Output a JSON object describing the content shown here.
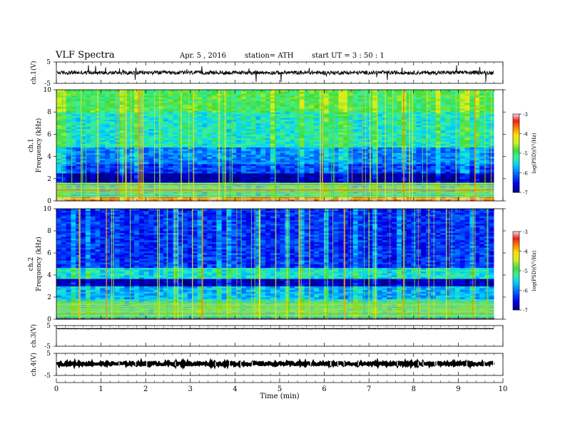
{
  "header": {
    "title": "VLF  Spectra",
    "date": "Apr. 5  , 2016",
    "station": "station= ATH",
    "start": "start  UT =   3  : 50 : 1"
  },
  "chart_data": [
    {
      "type": "line",
      "panel": "ch1-waveform",
      "ylabel": "ch.1(V)",
      "ylim": [
        -5,
        5
      ],
      "yticks": [
        "5",
        "-5"
      ],
      "xlim": [
        0,
        10
      ],
      "series": [
        {
          "baseline": 0,
          "noise_amplitude": 0.9,
          "x_end": 9.8
        }
      ]
    },
    {
      "type": "heatmap",
      "panel": "ch1-spectrogram",
      "ylabel": "ch.1\nFrequency  (kHz)",
      "ylim": [
        0,
        10
      ],
      "yticks": [
        "0",
        "2",
        "4",
        "6",
        "8",
        "10"
      ],
      "xlim": [
        0,
        10
      ],
      "x_end": 9.8,
      "colorbar": {
        "label": "log(PSD)(V²/Hz)",
        "range": [
          -7,
          -3
        ],
        "ticks": [
          "-3",
          "-4",
          "-5",
          "-6",
          "-7"
        ]
      },
      "band_profile": [
        {
          "f": [
            0.0,
            0.3
          ],
          "level": -3.3
        },
        {
          "f": [
            0.3,
            1.7
          ],
          "level": -5.4
        },
        {
          "f": [
            1.7,
            2.5
          ],
          "level": -6.9
        },
        {
          "f": [
            2.5,
            3.3
          ],
          "level": -6.2
        },
        {
          "f": [
            3.3,
            4.8
          ],
          "level": -5.9
        },
        {
          "f": [
            4.8,
            8.0
          ],
          "level": -5.3
        },
        {
          "f": [
            8.0,
            10.0
          ],
          "level": -4.9
        }
      ]
    },
    {
      "type": "heatmap",
      "panel": "ch2-spectrogram",
      "ylabel": "ch.2\nFrequency  (kHz)",
      "ylim": [
        0,
        10
      ],
      "yticks": [
        "0",
        "2",
        "4",
        "6",
        "8",
        "10"
      ],
      "xlim": [
        0,
        10
      ],
      "x_end": 9.8,
      "colorbar": {
        "label": "log(PSD)(V²/Hz)",
        "range": [
          -7,
          -3
        ],
        "ticks": [
          "-3",
          "-4",
          "-5",
          "-6",
          "-7"
        ]
      },
      "band_profile": [
        {
          "f": [
            0.0,
            0.2
          ],
          "level": -6.9
        },
        {
          "f": [
            0.2,
            1.8
          ],
          "level": -5.3
        },
        {
          "f": [
            1.8,
            3.0
          ],
          "level": -5.7
        },
        {
          "f": [
            3.0,
            3.7
          ],
          "level": -6.8
        },
        {
          "f": [
            3.7,
            4.7
          ],
          "level": -5.4
        },
        {
          "f": [
            4.7,
            10.0
          ],
          "level": -6.3
        }
      ]
    },
    {
      "type": "line",
      "panel": "ch3-waveform",
      "ylabel": "ch.3(V)",
      "ylim": [
        -5,
        5
      ],
      "yticks": [
        "5",
        "-5"
      ],
      "xlim": [
        0,
        10
      ],
      "series": [
        {
          "baseline": 3.5,
          "noise_amplitude": 0.1,
          "x_end": 9.8
        }
      ]
    },
    {
      "type": "line",
      "panel": "ch4-waveform",
      "ylabel": "ch.4(V)",
      "ylim": [
        -5,
        5
      ],
      "yticks": [
        "5",
        "-5"
      ],
      "xlim": [
        0,
        10
      ],
      "xlabel": "Time  (min)",
      "xticks": [
        "0",
        "1",
        "2",
        "3",
        "4",
        "5",
        "6",
        "7",
        "8",
        "9",
        "10"
      ],
      "series": [
        {
          "baseline": 0.3,
          "noise_amplitude": 0.6,
          "x_end": 9.8
        }
      ]
    }
  ]
}
